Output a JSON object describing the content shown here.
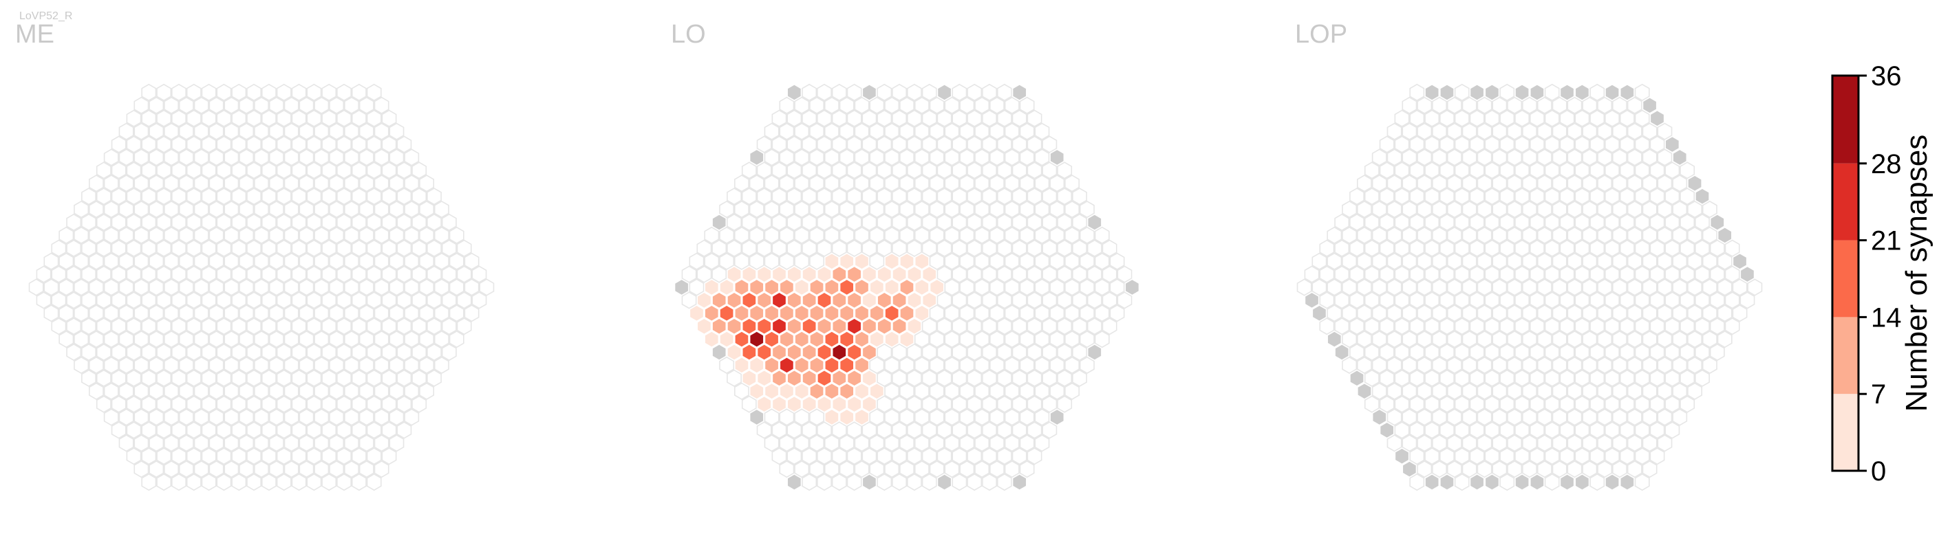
{
  "cell_label": "LoVP52_R",
  "chart_data": {
    "type": "heatmap",
    "panels": [
      {
        "name": "ME",
        "mode": "empty"
      },
      {
        "name": "LO",
        "mode": "hotspot"
      },
      {
        "name": "LOP",
        "mode": "rim"
      }
    ],
    "colorbar": {
      "label": "Number of synapses",
      "ticks": [
        "0",
        "7",
        "14",
        "21",
        "28",
        "36"
      ],
      "min": 0,
      "max": 36,
      "bins": [
        {
          "from": 0,
          "to": 7,
          "color": "#fee5d9"
        },
        {
          "from": 7,
          "to": 14,
          "color": "#fcae91"
        },
        {
          "from": 14,
          "to": 21,
          "color": "#fb6a4a"
        },
        {
          "from": 21,
          "to": 28,
          "color": "#de2d26"
        },
        {
          "from": 28,
          "to": 36,
          "color": "#a50f15"
        }
      ]
    },
    "colors": {
      "empty_fill": "#ffffff",
      "empty_stroke": "#e6e6e6",
      "no_data_fill": "#cccccc",
      "title_color": "#c9c9c9"
    },
    "lo_hotspots": [
      {
        "q": -12,
        "r": 4,
        "value": 30
      },
      {
        "q": -9,
        "r": 1,
        "value": 25
      },
      {
        "q": -10,
        "r": 3,
        "value": 23
      },
      {
        "q": -13,
        "r": 2,
        "value": 20
      },
      {
        "q": -11,
        "r": 6,
        "value": 22
      },
      {
        "q": -8,
        "r": 3,
        "value": 18
      },
      {
        "q": -7,
        "r": 5,
        "value": 33
      },
      {
        "q": -6,
        "r": 1,
        "value": 19
      },
      {
        "q": -9,
        "r": 7,
        "value": 16
      },
      {
        "q": -11,
        "r": 1,
        "value": 15
      },
      {
        "q": -14,
        "r": 3,
        "value": 11
      },
      {
        "q": -5,
        "r": 3,
        "value": 26
      },
      {
        "q": -4,
        "r": 0,
        "value": 17
      },
      {
        "q": -8,
        "r": 8,
        "value": 13
      },
      {
        "q": -2,
        "r": 2,
        "value": 15
      },
      {
        "q": 0,
        "r": 0,
        "value": 12
      },
      {
        "q": -12,
        "r": 7,
        "value": 12
      }
    ]
  }
}
